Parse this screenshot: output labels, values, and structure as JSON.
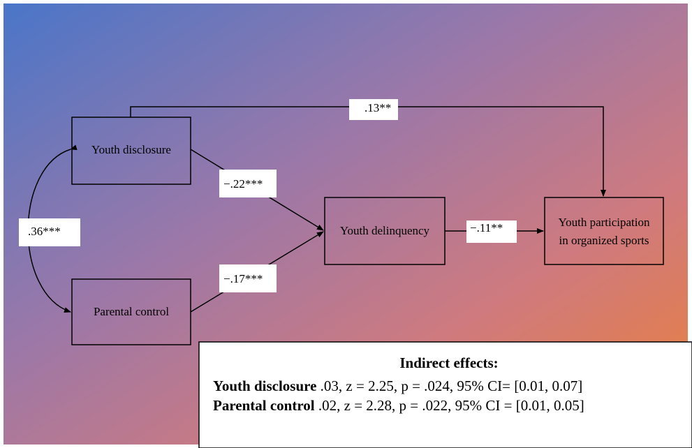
{
  "nodes": [
    {
      "label": [
        "Youth disclosure"
      ]
    },
    {
      "label": [
        "Parental control"
      ]
    },
    {
      "label": [
        "Youth delinquency"
      ]
    },
    {
      "label": [
        "Youth participation",
        "in organized sports"
      ]
    }
  ],
  "paths": [
    {
      "label": ".13**"
    },
    {
      "label": "−.22***"
    },
    {
      "label": ".36***"
    },
    {
      "label": "−.11**"
    },
    {
      "label": "−.17***"
    }
  ],
  "indirect_effects": {
    "title": "Indirect effects:",
    "rows": [
      {
        "name": "Youth disclosure",
        "text": " .03, z = 2.25, p = .024, 95% CI= [0.01, 0.07]"
      },
      {
        "name": "Parental control",
        "text": " .02, z = 2.28, p = .022, 95% CI = [0.01, 0.05]"
      }
    ]
  }
}
